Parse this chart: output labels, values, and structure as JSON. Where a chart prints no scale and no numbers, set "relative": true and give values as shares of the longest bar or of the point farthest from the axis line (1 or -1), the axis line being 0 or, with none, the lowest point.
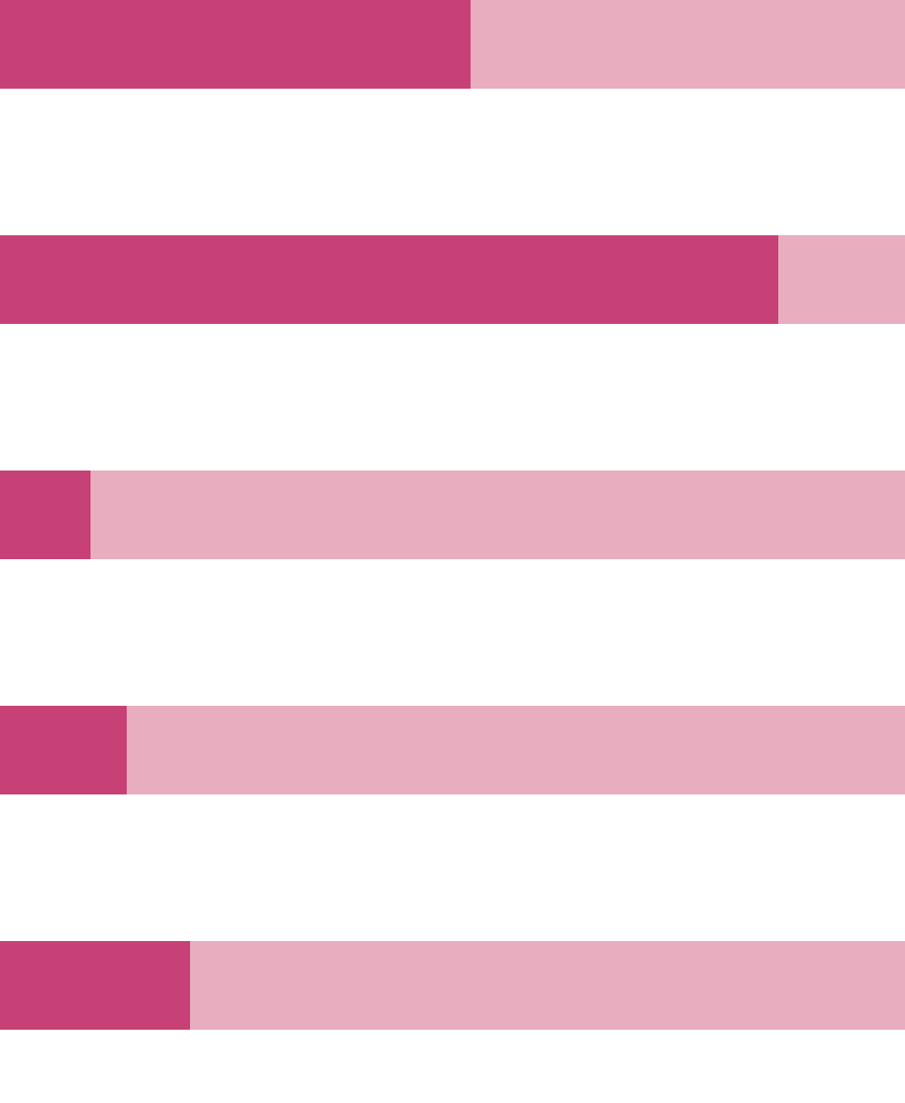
{
  "chart_data": {
    "type": "bar",
    "orientation": "horizontal",
    "stacked": true,
    "relative": true,
    "categories": [
      null,
      null,
      null,
      null,
      null
    ],
    "series": [
      {
        "color": "#c84176",
        "values": [
          0.52,
          0.86,
          0.1,
          0.14,
          0.21
        ]
      },
      {
        "color": "#e8adbe",
        "values": [
          0.48,
          0.14,
          0.9,
          0.86,
          0.79
        ]
      }
    ]
  }
}
